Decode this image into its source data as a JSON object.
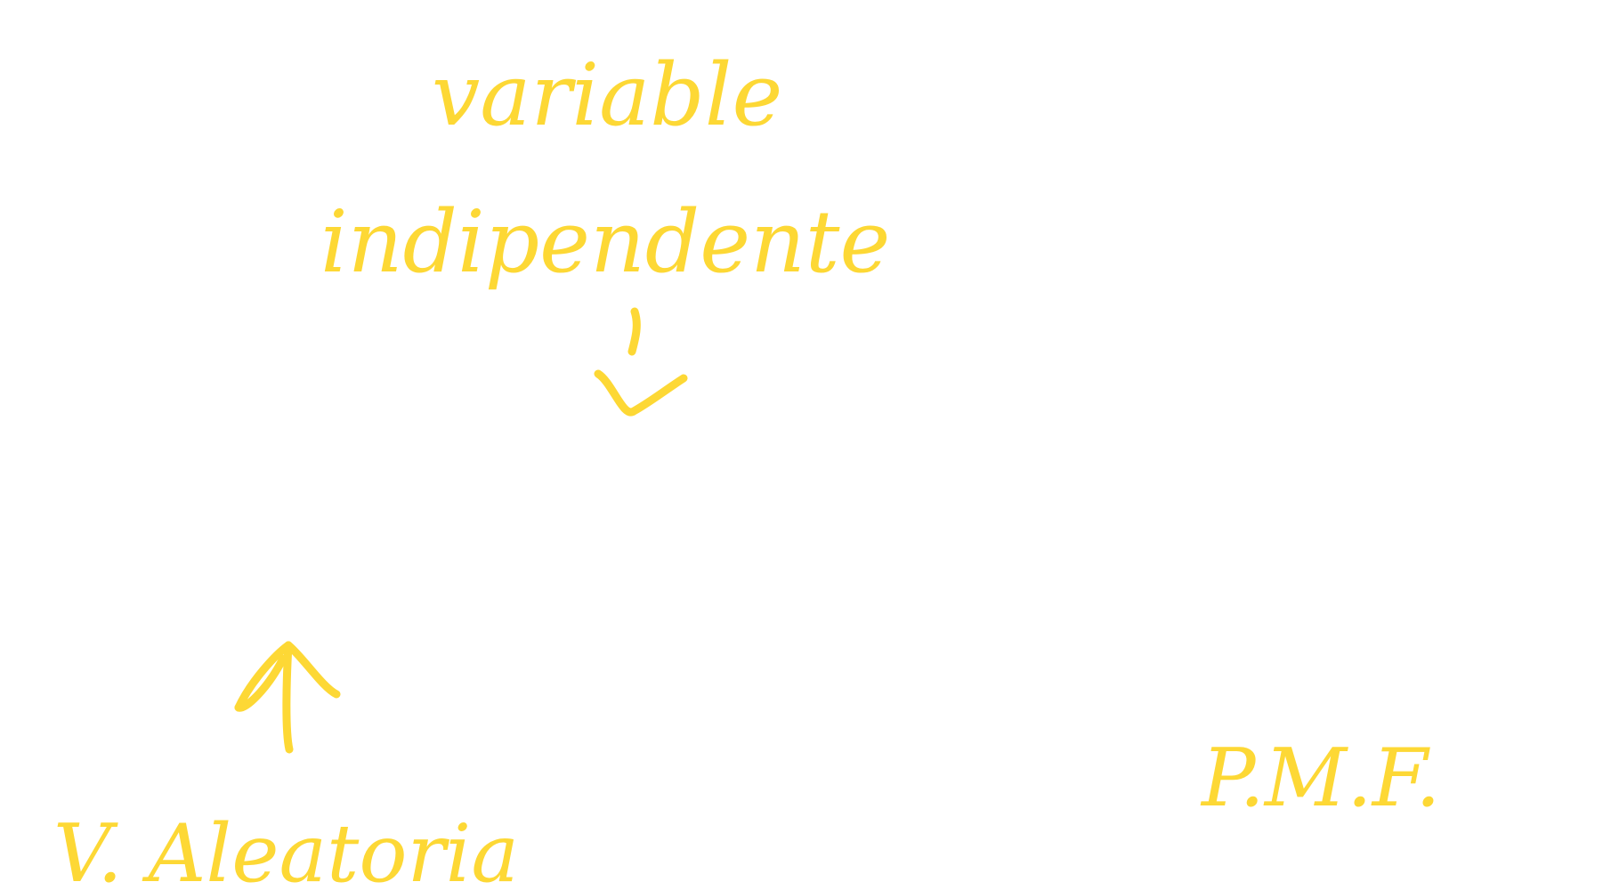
{
  "board": {
    "background": "#ffffff",
    "ink": "#fdd835",
    "notes": {
      "line1": "variable",
      "line2": "indipendente",
      "bottom_left": "V. Aleatoria",
      "bottom_right": "P.M.F."
    },
    "icons": [
      "down-arrow-icon",
      "up-arrow-icon"
    ]
  }
}
